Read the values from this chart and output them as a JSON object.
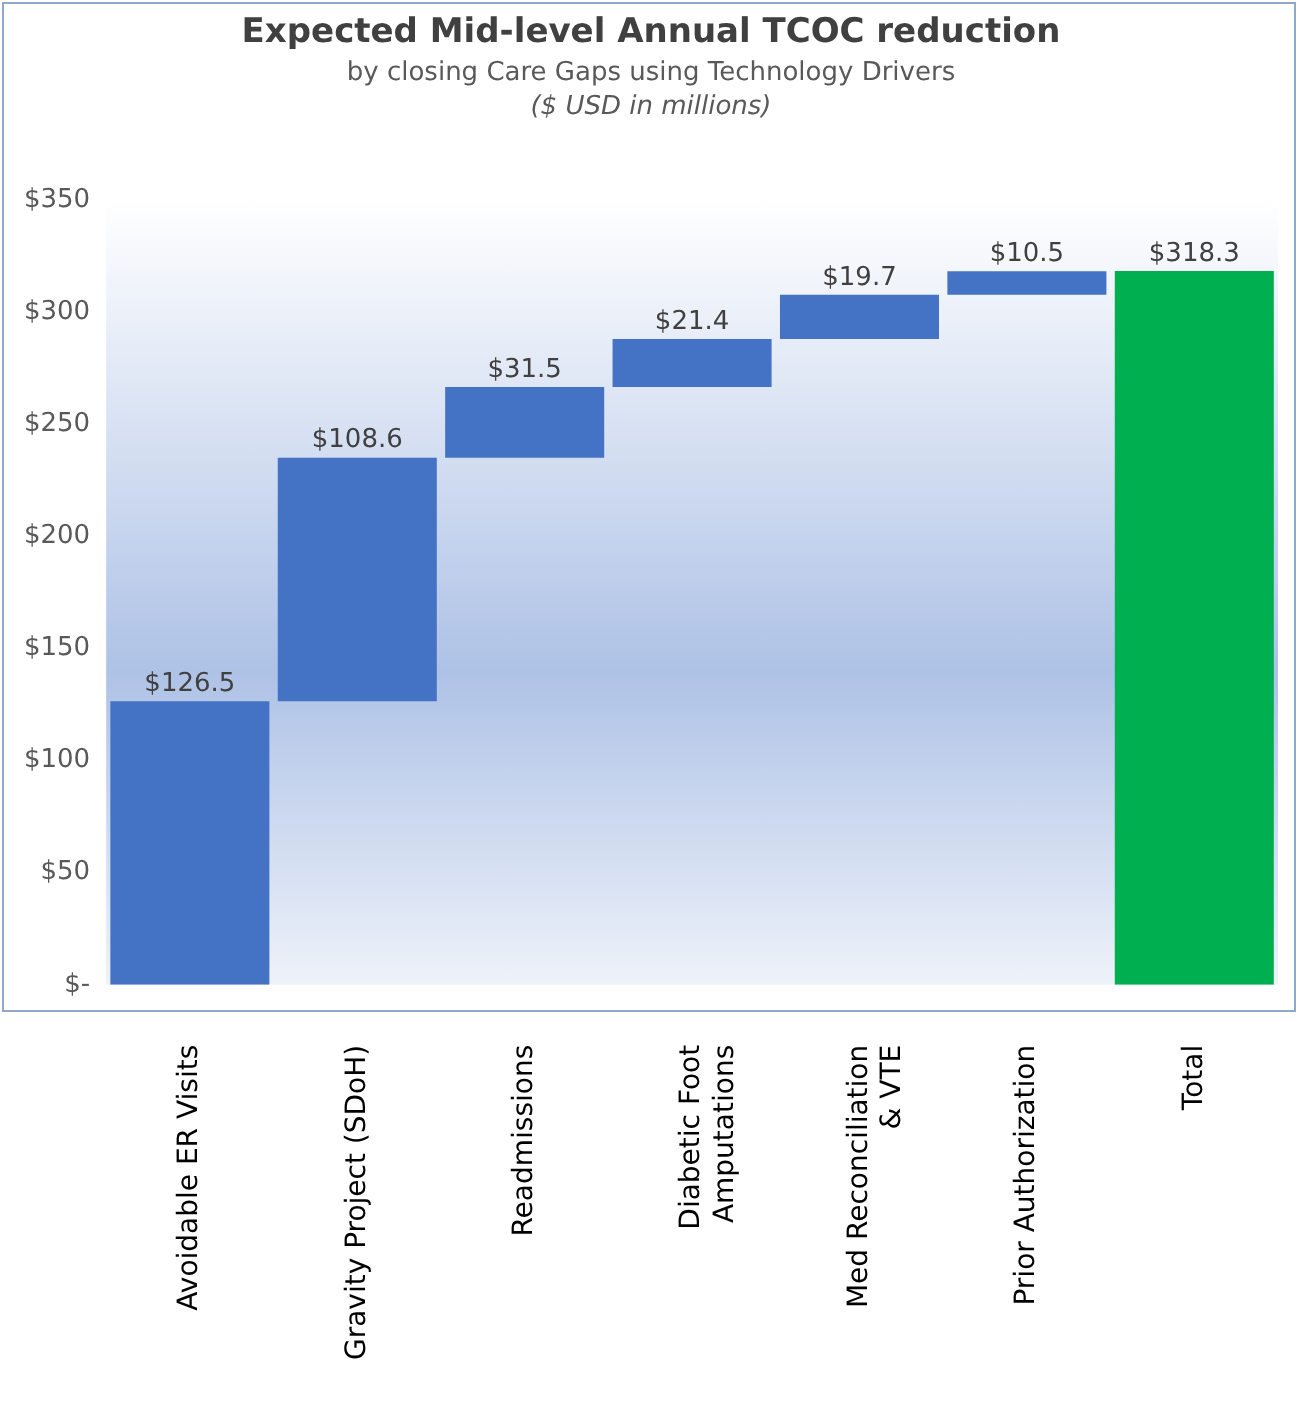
{
  "chart_data": {
    "type": "bar",
    "title": "Expected Mid-level Annual TCOC reduction",
    "subtitle": "by closing Care Gaps using Technology Drivers",
    "annotations": [
      "($ USD in millions)"
    ],
    "categories": [
      "Avoidable ER Visits",
      "Gravity Project (SDoH)",
      "Readmissions",
      "Diabetic Foot Amputations",
      "Med Reconciliation & VTE",
      "Prior Authorization",
      "Total"
    ],
    "values": [
      126.5,
      108.6,
      31.5,
      21.4,
      19.7,
      10.5,
      318.3
    ],
    "base": [
      0,
      126.5,
      235.1,
      266.6,
      288.0,
      307.7,
      0
    ],
    "colors": [
      "#4472c4",
      "#4472c4",
      "#4472c4",
      "#4472c4",
      "#4472c4",
      "#4472c4",
      "#00b050"
    ],
    "value_labels": [
      "$126.5",
      "$108.6",
      "$31.5",
      "$21.4",
      "$19.7",
      "$10.5",
      "$318.3"
    ],
    "ylim": [
      0,
      350
    ],
    "yticks": [
      {
        "value": 0,
        "label": "$-"
      },
      {
        "value": 50,
        "label": "$50"
      },
      {
        "value": 100,
        "label": "$100"
      },
      {
        "value": 150,
        "label": "$150"
      },
      {
        "value": 200,
        "label": "$200"
      },
      {
        "value": 250,
        "label": "$250"
      },
      {
        "value": 300,
        "label": "$300"
      },
      {
        "value": 350,
        "label": "$350"
      }
    ],
    "grid": false,
    "legend": false
  }
}
